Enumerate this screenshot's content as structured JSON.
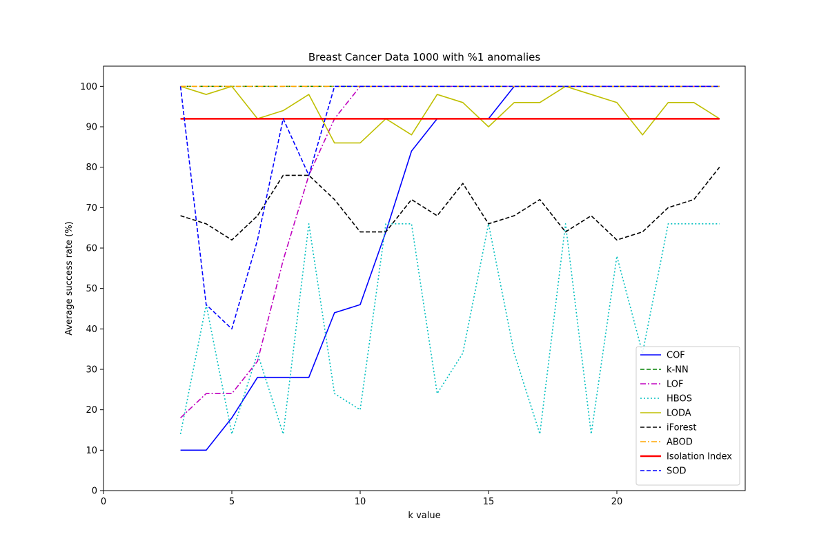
{
  "chart_data": {
    "type": "line",
    "title": "Breast Cancer Data 1000 with %1 anomalies",
    "xlabel": "k value",
    "ylabel": "Average success rate (%)",
    "xlim": [
      0,
      25
    ],
    "ylim": [
      0,
      105
    ],
    "xticks": [
      0,
      5,
      10,
      15,
      20
    ],
    "yticks": [
      0,
      10,
      20,
      30,
      40,
      50,
      60,
      70,
      80,
      90,
      100
    ],
    "grid": false,
    "legend_position": "lower-right",
    "x": [
      3,
      4,
      5,
      6,
      7,
      8,
      9,
      10,
      11,
      12,
      13,
      14,
      15,
      16,
      17,
      18,
      19,
      20,
      21,
      22,
      23,
      24
    ],
    "series": [
      {
        "name": "COF",
        "color": "#0000ff",
        "dash": "solid",
        "values": [
          10,
          10,
          18,
          28,
          28,
          28,
          44,
          46,
          64,
          84,
          92,
          92,
          92,
          100,
          100,
          100,
          100,
          100,
          100,
          100,
          100,
          100
        ]
      },
      {
        "name": "k-NN",
        "color": "#008000",
        "dash": "dashed",
        "values": [
          100,
          100,
          100,
          100,
          100,
          100,
          100,
          100,
          100,
          100,
          100,
          100,
          100,
          100,
          100,
          100,
          100,
          100,
          100,
          100,
          100,
          100
        ]
      },
      {
        "name": "LOF",
        "color": "#bf00bf",
        "dash": "dashdot",
        "values": [
          18,
          24,
          24,
          32,
          57,
          78,
          92,
          100,
          100,
          100,
          100,
          100,
          100,
          100,
          100,
          100,
          100,
          100,
          100,
          100,
          100,
          100
        ]
      },
      {
        "name": "HBOS",
        "color": "#00bfbf",
        "dash": "dotted",
        "values": [
          14,
          46,
          14,
          34,
          14,
          66,
          24,
          20,
          66,
          66,
          24,
          34,
          66,
          34,
          14,
          66,
          14,
          58,
          34,
          66,
          66,
          66
        ]
      },
      {
        "name": "LODA",
        "color": "#bfbf00",
        "dash": "solid",
        "values": [
          100,
          98,
          100,
          92,
          94,
          98,
          86,
          86,
          92,
          88,
          98,
          96,
          90,
          96,
          96,
          100,
          98,
          96,
          88,
          96,
          96,
          92
        ]
      },
      {
        "name": "iForest",
        "color": "#000000",
        "dash": "dashed",
        "values": [
          68,
          66,
          62,
          68,
          78,
          78,
          72,
          64,
          64,
          72,
          68,
          76,
          66,
          68,
          72,
          64,
          68,
          62,
          64,
          70,
          72,
          80
        ]
      },
      {
        "name": "ABOD",
        "color": "#ffa500",
        "dash": "dashdot",
        "values": [
          100,
          100,
          100,
          100,
          100,
          100,
          100,
          100,
          100,
          100,
          100,
          100,
          100,
          100,
          100,
          100,
          100,
          100,
          100,
          100,
          100,
          100
        ]
      },
      {
        "name": "Isolation Index",
        "color": "#ff0000",
        "dash": "thick",
        "values": [
          92,
          92,
          92,
          92,
          92,
          92,
          92,
          92,
          92,
          92,
          92,
          92,
          92,
          92,
          92,
          92,
          92,
          92,
          92,
          92,
          92,
          92
        ]
      },
      {
        "name": "SOD",
        "color": "#0000ff",
        "dash": "dashed",
        "values": [
          100,
          46,
          40,
          62,
          92,
          78,
          100,
          100,
          100,
          100,
          100,
          100,
          100,
          100,
          100,
          100,
          100,
          100,
          100,
          100,
          100,
          100
        ]
      }
    ]
  }
}
